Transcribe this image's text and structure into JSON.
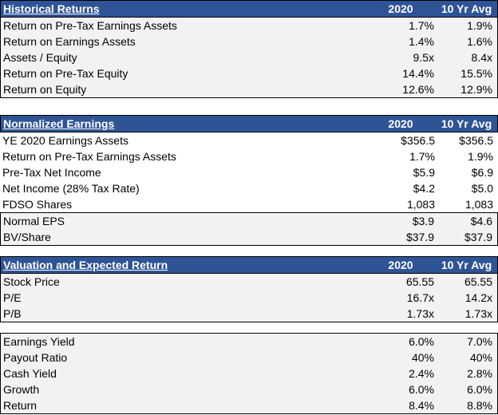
{
  "colors": {
    "header_bg": "#2F5496",
    "header_text": "#FFFFFF",
    "row_fill_gray": "#F2F2F2",
    "row_fill_white": "#FFFFFF",
    "border": "#000000"
  },
  "columns": {
    "col_2020": "2020",
    "col_10yr": "10 Yr Avg"
  },
  "tables": [
    {
      "title": "Historical Returns",
      "rows": [
        {
          "label": "Return on Pre-Tax Earnings Assets",
          "v2020": "1.7%",
          "v10yr": "1.9%"
        },
        {
          "label": "Return on Earnings Assets",
          "v2020": "1.4%",
          "v10yr": "1.6%"
        },
        {
          "label": "Assets / Equity",
          "v2020": "9.5x",
          "v10yr": "8.4x"
        },
        {
          "label": "Return on Pre-Tax Equity",
          "v2020": "14.4%",
          "v10yr": "15.5%"
        },
        {
          "label": "Return on Equity",
          "v2020": "12.6%",
          "v10yr": "12.9%"
        }
      ]
    },
    {
      "title": "Normalized Earnings",
      "rows": [
        {
          "label": "YE 2020 Earnings Assets",
          "v2020": "$356.5",
          "v10yr": "$356.5"
        },
        {
          "label": "Return on Pre-Tax Earnings Assets",
          "v2020": "1.7%",
          "v10yr": "1.9%"
        },
        {
          "label": "Pre-Tax Net Income",
          "v2020": "$5.9",
          "v10yr": "$6.9"
        },
        {
          "label": "Net Income (28% Tax Rate)",
          "v2020": "$4.2",
          "v10yr": "$5.0"
        },
        {
          "label": "FDSO Shares",
          "v2020": "1,083",
          "v10yr": "1,083"
        }
      ],
      "summary_rows": [
        {
          "label": "Normal EPS",
          "v2020": "$3.9",
          "v10yr": "$4.6"
        },
        {
          "label": "BV/Share",
          "v2020": "$37.9",
          "v10yr": "$37.9"
        }
      ]
    },
    {
      "title": "Valuation and Expected Return",
      "rows": [
        {
          "label": "Stock Price",
          "v2020": "65.55",
          "v10yr": "65.55"
        },
        {
          "label": "P/E",
          "v2020": "16.7x",
          "v10yr": "14.2x"
        },
        {
          "label": "P/B",
          "v2020": "1.73x",
          "v10yr": "1.73x"
        }
      ]
    },
    {
      "title": "",
      "rows": [
        {
          "label": "Earnings Yield",
          "v2020": "6.0%",
          "v10yr": "7.0%"
        },
        {
          "label": "Payout Ratio",
          "v2020": "40%",
          "v10yr": "40%"
        },
        {
          "label": "Cash Yield",
          "v2020": "2.4%",
          "v10yr": "2.8%"
        },
        {
          "label": "Growth",
          "v2020": "6.0%",
          "v10yr": "6.0%"
        },
        {
          "label": "Return",
          "v2020": "8.4%",
          "v10yr": "8.8%"
        }
      ]
    }
  ]
}
